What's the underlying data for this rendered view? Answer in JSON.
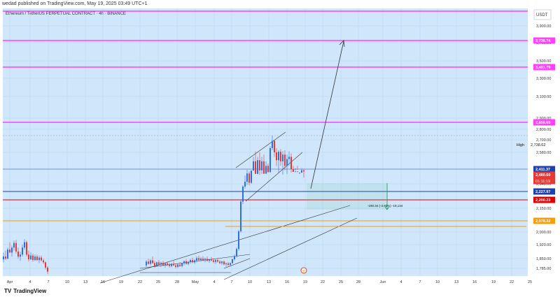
{
  "header": {
    "published": "wedad published on TradingView.com, May 19, 2025 03:49 UTC+1"
  },
  "footer": {
    "logo_mark": "TV",
    "brand": "TradingView"
  },
  "chart_data": {
    "type": "candlestick",
    "title": "Ethereum / TetherUS PERPETUAL CONTRACT · 4h · BINANCE",
    "currency": "USDT",
    "ylim": [
      1750,
      4050
    ],
    "y_ticks": [
      {
        "value": 3900,
        "label": "3,900.00"
      },
      {
        "value": 3700,
        "label": "3,700.00"
      },
      {
        "value": 3500,
        "label": "3,500.00"
      },
      {
        "value": 3300,
        "label": "3,300.00"
      },
      {
        "value": 3100,
        "label": "3,100.00"
      },
      {
        "value": 2900,
        "label": "2,900.00"
      },
      {
        "value": 2800,
        "label": "2,800.00"
      },
      {
        "value": 2700,
        "label": "2,700.00"
      },
      {
        "value": 2580,
        "label": "2,580.00"
      },
      {
        "value": 2340,
        "label": "2,340.00"
      },
      {
        "value": 2150,
        "label": "2,150.00"
      },
      {
        "value": 2000,
        "label": "2,000.00"
      },
      {
        "value": 1920,
        "label": "1,920.00"
      },
      {
        "value": 1850,
        "label": "1,850.00"
      },
      {
        "value": 1785,
        "label": "1,785.00"
      }
    ],
    "x_ticks": [
      "Apr",
      "4",
      "7",
      "10",
      "13",
      "16",
      "19",
      "22",
      "25",
      "28",
      "May",
      "4",
      "7",
      "10",
      "13",
      "16",
      "19",
      "22",
      "25",
      "28",
      "Jun",
      "4",
      "7",
      "10",
      "13",
      "16",
      "19",
      "22",
      "25"
    ],
    "horizontal_levels": [
      {
        "value": 4000,
        "label": "",
        "color": "#ff40ff"
      },
      {
        "value": 3736.74,
        "label": "3,736.74",
        "color": "#ff40ff"
      },
      {
        "value": 3401.79,
        "label": "3,401.79",
        "color": "#ff40ff"
      },
      {
        "value": 2856.65,
        "label": "2,856.65",
        "color": "#ff40ff"
      },
      {
        "value": 2227.97,
        "label": "2,227.97",
        "color": "#1e40af"
      },
      {
        "value": 2200.23,
        "label": "2,200.23",
        "color": "#e00000"
      },
      {
        "value": 2078.32,
        "label": "2,078.32",
        "color": "#f59e0b"
      }
    ],
    "high_marker": {
      "label": "High",
      "value": "2,738.62"
    },
    "current_price": {
      "value": "2,480.60",
      "countdown": "01:11:19",
      "color": "#e53935"
    },
    "level_2411": {
      "value": "2,411.37",
      "color": "#1e40af"
    },
    "measure_label": "-190.34 (-3.93%) -19,134",
    "candles": [
      {
        "x": 5,
        "o": 1845,
        "h": 1880,
        "l": 1825,
        "c": 1860
      },
      {
        "x": 8,
        "o": 1860,
        "h": 1890,
        "l": 1840,
        "c": 1850
      },
      {
        "x": 11,
        "o": 1850,
        "h": 1905,
        "l": 1845,
        "c": 1895
      },
      {
        "x": 14,
        "o": 1895,
        "h": 1935,
        "l": 1880,
        "c": 1880
      },
      {
        "x": 17,
        "o": 1880,
        "h": 1915,
        "l": 1860,
        "c": 1905
      },
      {
        "x": 20,
        "o": 1905,
        "h": 1945,
        "l": 1890,
        "c": 1930
      },
      {
        "x": 23,
        "o": 1930,
        "h": 1950,
        "l": 1875,
        "c": 1885
      },
      {
        "x": 26,
        "o": 1885,
        "h": 1905,
        "l": 1850,
        "c": 1860
      },
      {
        "x": 29,
        "o": 1860,
        "h": 1885,
        "l": 1835,
        "c": 1870
      },
      {
        "x": 32,
        "o": 1870,
        "h": 1920,
        "l": 1860,
        "c": 1905
      },
      {
        "x": 35,
        "o": 1905,
        "h": 1955,
        "l": 1895,
        "c": 1935
      },
      {
        "x": 38,
        "o": 1935,
        "h": 1945,
        "l": 1860,
        "c": 1870
      },
      {
        "x": 41,
        "o": 1870,
        "h": 1890,
        "l": 1830,
        "c": 1845
      },
      {
        "x": 44,
        "o": 1845,
        "h": 1880,
        "l": 1840,
        "c": 1865
      },
      {
        "x": 47,
        "o": 1865,
        "h": 1875,
        "l": 1830,
        "c": 1840
      },
      {
        "x": 50,
        "o": 1840,
        "h": 1870,
        "l": 1835,
        "c": 1860
      },
      {
        "x": 53,
        "o": 1860,
        "h": 1870,
        "l": 1835,
        "c": 1840
      },
      {
        "x": 56,
        "o": 1840,
        "h": 1865,
        "l": 1820,
        "c": 1855
      },
      {
        "x": 59,
        "o": 1855,
        "h": 1865,
        "l": 1830,
        "c": 1838
      },
      {
        "x": 62,
        "o": 1838,
        "h": 1850,
        "l": 1815,
        "c": 1825
      },
      {
        "x": 65,
        "o": 1825,
        "h": 1830,
        "l": 1780,
        "c": 1790
      },
      {
        "x": 68,
        "o": 1790,
        "h": 1800,
        "l": 1760,
        "c": 1770
      },
      {
        "x": 209,
        "o": 1805,
        "h": 1840,
        "l": 1795,
        "c": 1830
      },
      {
        "x": 212,
        "o": 1830,
        "h": 1850,
        "l": 1810,
        "c": 1815
      },
      {
        "x": 215,
        "o": 1815,
        "h": 1845,
        "l": 1805,
        "c": 1838
      },
      {
        "x": 218,
        "o": 1838,
        "h": 1860,
        "l": 1815,
        "c": 1820
      },
      {
        "x": 221,
        "o": 1820,
        "h": 1835,
        "l": 1790,
        "c": 1800
      },
      {
        "x": 224,
        "o": 1800,
        "h": 1830,
        "l": 1795,
        "c": 1825
      },
      {
        "x": 227,
        "o": 1825,
        "h": 1840,
        "l": 1805,
        "c": 1810
      },
      {
        "x": 230,
        "o": 1810,
        "h": 1830,
        "l": 1795,
        "c": 1822
      },
      {
        "x": 233,
        "o": 1822,
        "h": 1835,
        "l": 1800,
        "c": 1805
      },
      {
        "x": 236,
        "o": 1805,
        "h": 1825,
        "l": 1790,
        "c": 1818
      },
      {
        "x": 239,
        "o": 1818,
        "h": 1830,
        "l": 1800,
        "c": 1808
      },
      {
        "x": 242,
        "o": 1808,
        "h": 1822,
        "l": 1790,
        "c": 1800
      },
      {
        "x": 245,
        "o": 1800,
        "h": 1820,
        "l": 1792,
        "c": 1815
      },
      {
        "x": 248,
        "o": 1815,
        "h": 1835,
        "l": 1800,
        "c": 1805
      },
      {
        "x": 251,
        "o": 1805,
        "h": 1818,
        "l": 1785,
        "c": 1795
      },
      {
        "x": 254,
        "o": 1795,
        "h": 1815,
        "l": 1788,
        "c": 1810
      },
      {
        "x": 257,
        "o": 1810,
        "h": 1825,
        "l": 1795,
        "c": 1800
      },
      {
        "x": 260,
        "o": 1800,
        "h": 1822,
        "l": 1792,
        "c": 1818
      },
      {
        "x": 263,
        "o": 1818,
        "h": 1838,
        "l": 1805,
        "c": 1832
      },
      {
        "x": 266,
        "o": 1832,
        "h": 1845,
        "l": 1810,
        "c": 1815
      },
      {
        "x": 269,
        "o": 1815,
        "h": 1835,
        "l": 1805,
        "c": 1828
      },
      {
        "x": 272,
        "o": 1828,
        "h": 1848,
        "l": 1815,
        "c": 1840
      },
      {
        "x": 275,
        "o": 1840,
        "h": 1855,
        "l": 1820,
        "c": 1825
      },
      {
        "x": 278,
        "o": 1825,
        "h": 1845,
        "l": 1815,
        "c": 1838
      },
      {
        "x": 281,
        "o": 1838,
        "h": 1860,
        "l": 1825,
        "c": 1852
      },
      {
        "x": 284,
        "o": 1852,
        "h": 1865,
        "l": 1835,
        "c": 1840
      },
      {
        "x": 287,
        "o": 1840,
        "h": 1858,
        "l": 1830,
        "c": 1850
      },
      {
        "x": 290,
        "o": 1850,
        "h": 1862,
        "l": 1832,
        "c": 1838
      },
      {
        "x": 293,
        "o": 1838,
        "h": 1855,
        "l": 1825,
        "c": 1848
      },
      {
        "x": 296,
        "o": 1848,
        "h": 1860,
        "l": 1830,
        "c": 1835
      },
      {
        "x": 299,
        "o": 1835,
        "h": 1850,
        "l": 1822,
        "c": 1845
      },
      {
        "x": 302,
        "o": 1845,
        "h": 1858,
        "l": 1830,
        "c": 1838
      },
      {
        "x": 305,
        "o": 1838,
        "h": 1850,
        "l": 1820,
        "c": 1828
      },
      {
        "x": 308,
        "o": 1828,
        "h": 1845,
        "l": 1815,
        "c": 1840
      },
      {
        "x": 311,
        "o": 1840,
        "h": 1852,
        "l": 1822,
        "c": 1830
      },
      {
        "x": 314,
        "o": 1830,
        "h": 1842,
        "l": 1812,
        "c": 1820
      },
      {
        "x": 317,
        "o": 1820,
        "h": 1835,
        "l": 1808,
        "c": 1830
      },
      {
        "x": 320,
        "o": 1830,
        "h": 1838,
        "l": 1805,
        "c": 1812
      },
      {
        "x": 323,
        "o": 1812,
        "h": 1825,
        "l": 1795,
        "c": 1818
      },
      {
        "x": 326,
        "o": 1818,
        "h": 1828,
        "l": 1800,
        "c": 1808
      },
      {
        "x": 329,
        "o": 1808,
        "h": 1825,
        "l": 1798,
        "c": 1820
      },
      {
        "x": 332,
        "o": 1820,
        "h": 1850,
        "l": 1815,
        "c": 1845
      },
      {
        "x": 335,
        "o": 1845,
        "h": 1870,
        "l": 1838,
        "c": 1862
      },
      {
        "x": 338,
        "o": 1862,
        "h": 1905,
        "l": 1855,
        "c": 1898
      },
      {
        "x": 341,
        "o": 1898,
        "h": 2015,
        "l": 1890,
        "c": 2005
      },
      {
        "x": 344,
        "o": 2005,
        "h": 2200,
        "l": 1995,
        "c": 2190
      },
      {
        "x": 347,
        "o": 2190,
        "h": 2320,
        "l": 2175,
        "c": 2300
      },
      {
        "x": 350,
        "o": 2300,
        "h": 2380,
        "l": 2270,
        "c": 2350
      },
      {
        "x": 353,
        "o": 2350,
        "h": 2420,
        "l": 2320,
        "c": 2390
      },
      {
        "x": 356,
        "o": 2390,
        "h": 2400,
        "l": 2320,
        "c": 2345
      },
      {
        "x": 359,
        "o": 2345,
        "h": 2450,
        "l": 2340,
        "c": 2430
      },
      {
        "x": 362,
        "o": 2430,
        "h": 2560,
        "l": 2420,
        "c": 2540
      },
      {
        "x": 365,
        "o": 2540,
        "h": 2590,
        "l": 2450,
        "c": 2470
      },
      {
        "x": 368,
        "o": 2470,
        "h": 2560,
        "l": 2455,
        "c": 2545
      },
      {
        "x": 371,
        "o": 2545,
        "h": 2580,
        "l": 2480,
        "c": 2500
      },
      {
        "x": 374,
        "o": 2500,
        "h": 2560,
        "l": 2470,
        "c": 2540
      },
      {
        "x": 377,
        "o": 2540,
        "h": 2570,
        "l": 2470,
        "c": 2485
      },
      {
        "x": 380,
        "o": 2485,
        "h": 2540,
        "l": 2445,
        "c": 2520
      },
      {
        "x": 383,
        "o": 2520,
        "h": 2530,
        "l": 2430,
        "c": 2450
      },
      {
        "x": 386,
        "o": 2450,
        "h": 2640,
        "l": 2440,
        "c": 2620
      },
      {
        "x": 389,
        "o": 2620,
        "h": 2738,
        "l": 2600,
        "c": 2690
      },
      {
        "x": 392,
        "o": 2690,
        "h": 2700,
        "l": 2560,
        "c": 2580
      },
      {
        "x": 395,
        "o": 2580,
        "h": 2620,
        "l": 2520,
        "c": 2545
      },
      {
        "x": 398,
        "o": 2545,
        "h": 2600,
        "l": 2490,
        "c": 2585
      },
      {
        "x": 401,
        "o": 2585,
        "h": 2610,
        "l": 2520,
        "c": 2540
      },
      {
        "x": 404,
        "o": 2540,
        "h": 2590,
        "l": 2480,
        "c": 2570
      },
      {
        "x": 407,
        "o": 2570,
        "h": 2600,
        "l": 2500,
        "c": 2520
      },
      {
        "x": 410,
        "o": 2520,
        "h": 2570,
        "l": 2470,
        "c": 2550
      },
      {
        "x": 413,
        "o": 2550,
        "h": 2590,
        "l": 2520,
        "c": 2560
      },
      {
        "x": 416,
        "o": 2560,
        "h": 2575,
        "l": 2490,
        "c": 2505
      },
      {
        "x": 419,
        "o": 2505,
        "h": 2520,
        "l": 2430,
        "c": 2445
      },
      {
        "x": 422,
        "o": 2445,
        "h": 2510,
        "l": 2430,
        "c": 2495
      },
      {
        "x": 425,
        "o": 2495,
        "h": 2520,
        "l": 2420,
        "c": 2430
      },
      {
        "x": 428,
        "o": 2430,
        "h": 2470,
        "l": 2395,
        "c": 2455
      },
      {
        "x": 431,
        "o": 2455,
        "h": 2510,
        "l": 2440,
        "c": 2500
      },
      {
        "x": 434,
        "o": 2500,
        "h": 2505,
        "l": 2370,
        "c": 2400
      }
    ],
    "colors": {
      "up": "#2f6fe0",
      "down": "#e53935",
      "background": "#cfe6fb",
      "projection": "#333333",
      "measure": "#16a34a"
    }
  }
}
